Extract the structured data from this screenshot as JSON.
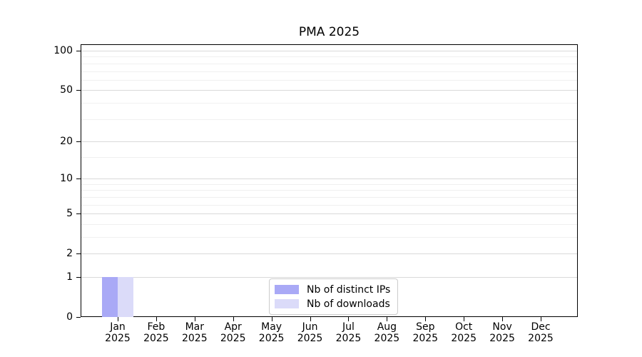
{
  "chart_data": {
    "type": "bar",
    "title": "PMA 2025",
    "categories": [
      "Jan",
      "Feb",
      "Mar",
      "Apr",
      "May",
      "Jun",
      "Jul",
      "Aug",
      "Sep",
      "Oct",
      "Nov",
      "Dec"
    ],
    "year_label": "2025",
    "series": [
      {
        "name": "Nb of distinct IPs",
        "color": "#a9a9f6",
        "values": [
          1,
          0,
          0,
          0,
          0,
          0,
          0,
          0,
          0,
          0,
          0,
          0
        ]
      },
      {
        "name": "Nb of downloads",
        "color": "#dbdbf9",
        "values": [
          1,
          0,
          0,
          0,
          0,
          0,
          0,
          0,
          0,
          0,
          0,
          0
        ]
      }
    ],
    "yticks": [
      0,
      1,
      2,
      5,
      10,
      20,
      50,
      100
    ],
    "yticks_minor": [
      3,
      4,
      6,
      7,
      8,
      9,
      15,
      30,
      40,
      60,
      70,
      80,
      90
    ],
    "ylim": [
      0,
      112
    ],
    "yscale": "log1p",
    "xlabel": "",
    "ylabel": "",
    "grid": true,
    "legend_position": "bottom-center",
    "colors": {
      "major_grid": "#d9d9d9",
      "minor_grid": "#f0f0f0",
      "axis_frame": "#000000",
      "legend_border": "#cccccc",
      "background": "#ffffff"
    }
  }
}
